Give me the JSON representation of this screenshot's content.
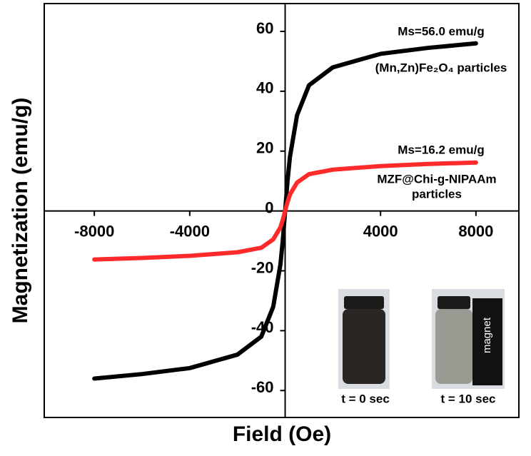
{
  "chart_data": {
    "type": "line",
    "x_label": "Field (Oe)",
    "y_label": "Magnetization (emu/g)",
    "xlim": [
      -10100,
      9800
    ],
    "ylim": [
      -69,
      69.3
    ],
    "xticks": [
      -8000,
      -4000,
      4000,
      8000
    ],
    "yticks": [
      -60,
      -40,
      -20,
      0,
      20,
      40,
      60
    ],
    "grid": false,
    "series": [
      {
        "name": "(Mn,Zn)Fe₂O₄ particles",
        "color": "#000000",
        "x": [
          -8000,
          -6000,
          -4000,
          -2000,
          -1000,
          -500,
          -200,
          -100,
          0,
          100,
          200,
          500,
          1000,
          2000,
          4000,
          6000,
          8000
        ],
        "values": [
          -56,
          -54.5,
          -52.5,
          -48,
          -42,
          -32,
          -18,
          -10,
          0,
          10,
          18,
          32,
          42,
          48,
          52.5,
          54.5,
          56
        ]
      },
      {
        "name": "MZF@Chi-g-NIPAAm particles",
        "color": "#ff2a2a",
        "x": [
          -8000,
          -6000,
          -4000,
          -2000,
          -1000,
          -500,
          -200,
          -100,
          0,
          100,
          200,
          500,
          1000,
          2000,
          4000,
          6000,
          8000
        ],
        "values": [
          -16.2,
          -15.7,
          -15,
          -13.8,
          -12.3,
          -9.5,
          -5.5,
          -3,
          0,
          3,
          5.5,
          9.5,
          12.3,
          13.8,
          15,
          15.7,
          16.2
        ]
      }
    ],
    "annotations": [
      "Ms=56.0 emu/g",
      "(Mn,Zn)Fe₂O₄ particles",
      "Ms=16.2 emu/g",
      "MZF@Chi-g-NIPAAm",
      "particles"
    ],
    "inset_labels": [
      "t = 0 sec",
      "t = 10 sec",
      "magnet"
    ]
  }
}
